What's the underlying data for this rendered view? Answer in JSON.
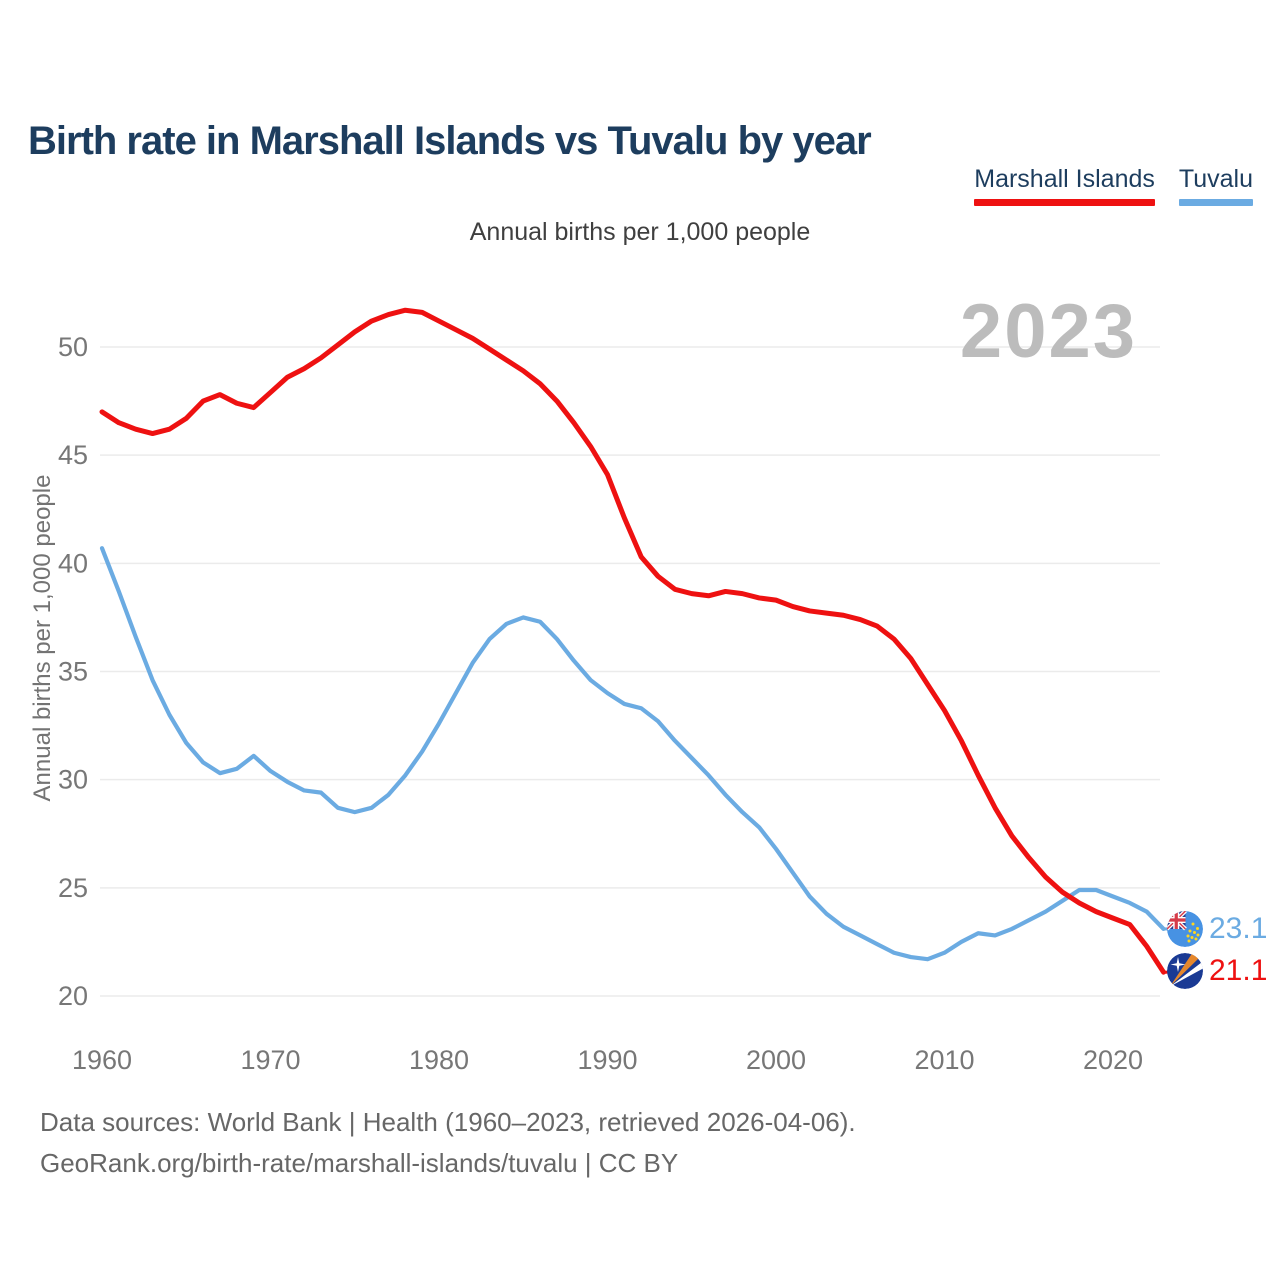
{
  "title": "Birth rate in Marshall Islands vs Tuvalu by year",
  "subtitle": "Annual births per 1,000 people",
  "watermark": "2023",
  "colors": {
    "marshall_red": "#ee1111",
    "tuvalu_blue": "#6babe2",
    "grid": "#ebebeb",
    "title_navy": "#1d3d5e",
    "axis_gray": "#777777",
    "watermark_gray": "#bcbcbc"
  },
  "legend": [
    {
      "label": "Marshall Islands",
      "color": "#ee1111"
    },
    {
      "label": "Tuvalu",
      "color": "#6babe2"
    }
  ],
  "footer": {
    "line1": "Data sources: World Bank | Health (1960–2023, retrieved 2026-04-06).",
    "line2": "GeoRank.org/birth-rate/marshall-islands/tuvalu | CC BY"
  },
  "chart_data": {
    "type": "line",
    "title": "Birth rate in Marshall Islands vs Tuvalu by year",
    "ylabel": "Annual births per 1,000 people",
    "grid": true,
    "legend_position": "top-right",
    "xlim": [
      1960,
      2023
    ],
    "ylim": [
      20,
      52
    ],
    "x_ticks": [
      1960,
      1970,
      1980,
      1990,
      2000,
      2010,
      2020
    ],
    "y_ticks": [
      20,
      25,
      30,
      35,
      40,
      45,
      50
    ],
    "years": [
      1960,
      1961,
      1962,
      1963,
      1964,
      1965,
      1966,
      1967,
      1968,
      1969,
      1970,
      1971,
      1972,
      1973,
      1974,
      1975,
      1976,
      1977,
      1978,
      1979,
      1980,
      1981,
      1982,
      1983,
      1984,
      1985,
      1986,
      1987,
      1988,
      1989,
      1990,
      1991,
      1992,
      1993,
      1994,
      1995,
      1996,
      1997,
      1998,
      1999,
      2000,
      2001,
      2002,
      2003,
      2004,
      2005,
      2006,
      2007,
      2008,
      2009,
      2010,
      2011,
      2012,
      2013,
      2014,
      2015,
      2016,
      2017,
      2018,
      2019,
      2020,
      2021,
      2022,
      2023
    ],
    "series": [
      {
        "id": "marshall-islands",
        "name": "Marshall Islands",
        "color": "#ee1111",
        "end_label": "21.1",
        "end_value": 21.1,
        "values": [
          47.0,
          46.5,
          46.2,
          46.0,
          46.2,
          46.7,
          47.5,
          47.8,
          47.4,
          47.2,
          47.9,
          48.6,
          49.0,
          49.5,
          50.1,
          50.7,
          51.2,
          51.5,
          51.7,
          51.6,
          51.2,
          50.8,
          50.4,
          49.9,
          49.4,
          48.9,
          48.3,
          47.5,
          46.5,
          45.4,
          44.1,
          42.1,
          40.3,
          39.4,
          38.8,
          38.6,
          38.5,
          38.7,
          38.6,
          38.4,
          38.3,
          38.0,
          37.8,
          37.7,
          37.6,
          37.4,
          37.1,
          36.5,
          35.6,
          34.4,
          33.2,
          31.8,
          30.2,
          28.7,
          27.4,
          26.4,
          25.5,
          24.8,
          24.3,
          23.9,
          23.6,
          23.3,
          22.3,
          21.1
        ]
      },
      {
        "id": "tuvalu",
        "name": "Tuvalu",
        "color": "#6babe2",
        "end_label": "23.1",
        "end_value": 23.1,
        "values": [
          40.7,
          38.7,
          36.6,
          34.6,
          33.0,
          31.7,
          30.8,
          30.3,
          30.5,
          31.1,
          30.4,
          29.9,
          29.5,
          29.4,
          28.7,
          28.5,
          28.7,
          29.3,
          30.2,
          31.3,
          32.6,
          34.0,
          35.4,
          36.5,
          37.2,
          37.5,
          37.3,
          36.5,
          35.5,
          34.6,
          34.0,
          33.5,
          33.3,
          32.7,
          31.8,
          31.0,
          30.2,
          29.3,
          28.5,
          27.8,
          26.8,
          25.7,
          24.6,
          23.8,
          23.2,
          22.8,
          22.4,
          22.0,
          21.8,
          21.7,
          22.0,
          22.5,
          22.9,
          22.8,
          23.1,
          23.5,
          23.9,
          24.4,
          24.9,
          24.9,
          24.6,
          24.3,
          23.9,
          23.1
        ]
      }
    ]
  }
}
